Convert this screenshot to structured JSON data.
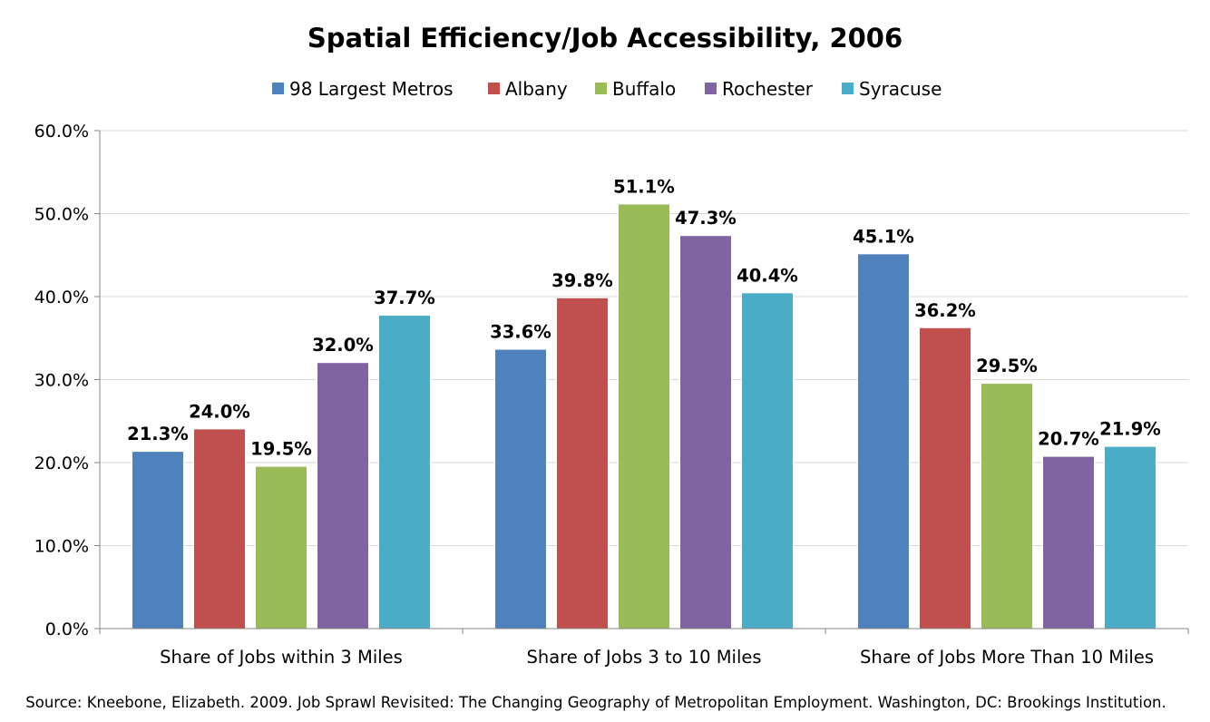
{
  "chart_data": {
    "type": "bar",
    "title": "Spatial Efficiency/Job Accessibility, 2006",
    "xlabel": "",
    "ylabel": "",
    "categories": [
      "Share of Jobs within 3 Miles",
      "Share of Jobs 3 to 10 Miles",
      "Share of Jobs More Than 10 Miles"
    ],
    "series": [
      {
        "name": "98 Largest Metros",
        "color": "#4F81BD",
        "values": [
          21.3,
          33.6,
          45.1
        ],
        "labels": [
          "21.3%",
          "33.6%",
          "45.1%"
        ]
      },
      {
        "name": "Albany",
        "color": "#C0504D",
        "values": [
          24.0,
          39.8,
          36.2
        ],
        "labels": [
          "24.0%",
          "39.8%",
          "36.2%"
        ]
      },
      {
        "name": "Buffalo",
        "color": "#9BBB59",
        "values": [
          19.5,
          51.1,
          29.5
        ],
        "labels": [
          "19.5%",
          "51.1%",
          "29.5%"
        ]
      },
      {
        "name": "Rochester",
        "color": "#8064A2",
        "values": [
          32.0,
          47.3,
          20.7
        ],
        "labels": [
          "32.0%",
          "47.3%",
          "20.7%"
        ]
      },
      {
        "name": "Syracuse",
        "color": "#4BACC6",
        "values": [
          37.7,
          40.4,
          21.9
        ],
        "labels": [
          "37.7%",
          "40.4%",
          "21.9%"
        ]
      }
    ],
    "ylim": [
      0,
      60
    ],
    "y_ticks": [
      0,
      10,
      20,
      30,
      40,
      50,
      60
    ],
    "y_tick_labels": [
      "0.0%",
      "10.0%",
      "20.0%",
      "30.0%",
      "40.0%",
      "50.0%",
      "60.0%"
    ],
    "grid": true,
    "legend_position": "top",
    "source": "Source: Kneebone, Elizabeth. 2009. Job Sprawl Revisited: The Changing Geography of Metropolitan Employment. Washington, DC: Brookings Institution."
  }
}
